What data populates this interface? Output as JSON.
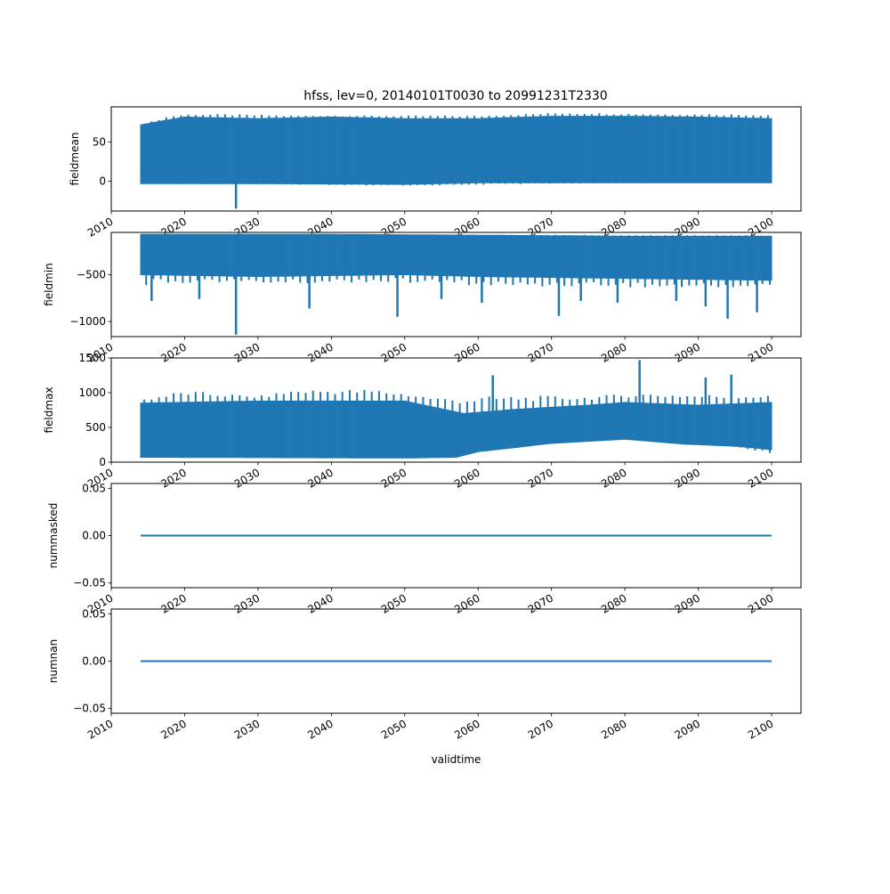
{
  "figure": {
    "title": "hfss, lev=0, 20140101T0030 to 20991231T2330",
    "line_color": "#1f77b4"
  },
  "chart_data": [
    {
      "type": "line",
      "ylabel": "fieldmean",
      "xlabel": "",
      "xlim": [
        2010,
        2104
      ],
      "ylim": [
        -38,
        95
      ],
      "yticks": [
        0,
        50
      ],
      "ytick_labels": [
        "0",
        "50"
      ],
      "xticks": [
        2010,
        2020,
        2030,
        2040,
        2050,
        2060,
        2070,
        2080,
        2090,
        2100
      ],
      "xtick_labels": [
        "2010",
        "2020",
        "2030",
        "2040",
        "2050",
        "2060",
        "2070",
        "2080",
        "2090",
        "2100"
      ],
      "x_start": 2014.0,
      "x_end": 2100.0,
      "band_upper": [
        [
          2014,
          72
        ],
        [
          2020,
          82
        ],
        [
          2030,
          80
        ],
        [
          2040,
          82
        ],
        [
          2050,
          80
        ],
        [
          2060,
          80
        ],
        [
          2070,
          83
        ],
        [
          2080,
          83
        ],
        [
          2090,
          82
        ],
        [
          2100,
          80
        ]
      ],
      "band_lower": [
        [
          2014,
          -3
        ],
        [
          2030,
          -3
        ],
        [
          2050,
          -4
        ],
        [
          2060,
          -2
        ],
        [
          2080,
          -2
        ],
        [
          2100,
          -2
        ]
      ],
      "seasonal_peaks": [
        [
          2014,
          72
        ],
        [
          2018,
          84
        ],
        [
          2021,
          86
        ],
        [
          2025,
          86
        ],
        [
          2035,
          84
        ],
        [
          2052,
          84
        ],
        [
          2060,
          84
        ],
        [
          2072,
          88
        ],
        [
          2085,
          86
        ],
        [
          2098,
          86
        ]
      ],
      "seasonal_troughs": [
        [
          2014,
          -3
        ],
        [
          2050,
          -6
        ],
        [
          2070,
          -3
        ],
        [
          2100,
          -2
        ]
      ],
      "spikes": [
        [
          2027.0,
          -35
        ]
      ],
      "grid": false
    },
    {
      "type": "line",
      "ylabel": "fieldmin",
      "xlabel": "",
      "xlim": [
        2010,
        2104
      ],
      "ylim": [
        -1160,
        -50
      ],
      "yticks": [
        -500,
        -1000
      ],
      "ytick_labels": [
        "−500",
        "−1000"
      ],
      "xticks": [
        2010,
        2020,
        2030,
        2040,
        2050,
        2060,
        2070,
        2080,
        2090,
        2100
      ],
      "xtick_labels": [
        "2010",
        "2020",
        "2030",
        "2040",
        "2050",
        "2060",
        "2070",
        "2080",
        "2090",
        "2100"
      ],
      "x_start": 2014.0,
      "x_end": 2100.0,
      "band_upper": [
        [
          2014,
          -70
        ],
        [
          2040,
          -70
        ],
        [
          2060,
          -80
        ],
        [
          2080,
          -90
        ],
        [
          2100,
          -90
        ]
      ],
      "band_lower": [
        [
          2014,
          -500
        ],
        [
          2030,
          -520
        ],
        [
          2050,
          -500
        ],
        [
          2060,
          -520
        ],
        [
          2080,
          -540
        ],
        [
          2100,
          -560
        ]
      ],
      "seasonal_peaks": [
        [
          2014,
          -70
        ],
        [
          2100,
          -80
        ]
      ],
      "seasonal_troughs": [
        [
          2014,
          -620
        ],
        [
          2018,
          -600
        ],
        [
          2022,
          -580
        ],
        [
          2035,
          -600
        ],
        [
          2045,
          -580
        ],
        [
          2055,
          -600
        ],
        [
          2065,
          -640
        ],
        [
          2075,
          -620
        ],
        [
          2085,
          -650
        ],
        [
          2095,
          -640
        ],
        [
          2100,
          -620
        ]
      ],
      "spikes": [
        [
          2015.5,
          -780
        ],
        [
          2022.0,
          -760
        ],
        [
          2027.0,
          -1140
        ],
        [
          2037.0,
          -860
        ],
        [
          2049.0,
          -950
        ],
        [
          2055.0,
          -760
        ],
        [
          2060.5,
          -800
        ],
        [
          2071.0,
          -940
        ],
        [
          2074.0,
          -780
        ],
        [
          2079.0,
          -800
        ],
        [
          2087.0,
          -780
        ],
        [
          2091.0,
          -840
        ],
        [
          2094.0,
          -970
        ],
        [
          2098.0,
          -900
        ]
      ],
      "grid": false
    },
    {
      "type": "line",
      "ylabel": "fieldmax",
      "xlabel": "",
      "xlim": [
        2010,
        2104
      ],
      "ylim": [
        0,
        1500
      ],
      "yticks": [
        0,
        500,
        1000,
        1500
      ],
      "ytick_labels": [
        "0",
        "500",
        "1000",
        "1500"
      ],
      "xticks": [
        2010,
        2020,
        2030,
        2040,
        2050,
        2060,
        2070,
        2080,
        2090,
        2100
      ],
      "xtick_labels": [
        "2010",
        "2020",
        "2030",
        "2040",
        "2050",
        "2060",
        "2070",
        "2080",
        "2090",
        "2100"
      ],
      "x_start": 2014.0,
      "x_end": 2100.0,
      "band_upper": [
        [
          2014,
          850
        ],
        [
          2030,
          880
        ],
        [
          2050,
          880
        ],
        [
          2058,
          700
        ],
        [
          2065,
          760
        ],
        [
          2075,
          820
        ],
        [
          2080,
          860
        ],
        [
          2090,
          820
        ],
        [
          2100,
          860
        ]
      ],
      "band_lower": [
        [
          2014,
          70
        ],
        [
          2050,
          60
        ],
        [
          2057,
          70
        ],
        [
          2060,
          150
        ],
        [
          2070,
          270
        ],
        [
          2080,
          330
        ],
        [
          2088,
          260
        ],
        [
          2095,
          230
        ],
        [
          2100,
          180
        ]
      ],
      "seasonal_peaks": [
        [
          2014,
          900
        ],
        [
          2020,
          1030
        ],
        [
          2030,
          950
        ],
        [
          2035,
          1050
        ],
        [
          2046,
          1050
        ],
        [
          2055,
          930
        ],
        [
          2065,
          960
        ],
        [
          2075,
          950
        ],
        [
          2082,
          1000
        ],
        [
          2090,
          980
        ],
        [
          2100,
          960
        ]
      ],
      "seasonal_troughs": [
        [
          2014,
          120
        ],
        [
          2030,
          60
        ],
        [
          2050,
          55
        ],
        [
          2057,
          70
        ],
        [
          2060,
          200
        ],
        [
          2070,
          280
        ],
        [
          2080,
          350
        ],
        [
          2090,
          300
        ],
        [
          2100,
          120
        ]
      ],
      "spikes": [
        [
          2062.0,
          1250
        ],
        [
          2082.0,
          1470
        ],
        [
          2091.0,
          1220
        ],
        [
          2094.5,
          1260
        ]
      ],
      "grid": false
    },
    {
      "type": "line",
      "ylabel": "nummasked",
      "xlabel": "",
      "xlim": [
        2010,
        2104
      ],
      "ylim": [
        -0.055,
        0.055
      ],
      "yticks": [
        0.05,
        0.0,
        -0.05
      ],
      "ytick_labels": [
        "0.05",
        "0.00",
        "−0.05"
      ],
      "xticks": [
        2010,
        2020,
        2030,
        2040,
        2050,
        2060,
        2070,
        2080,
        2090,
        2100
      ],
      "xtick_labels": [
        "2010",
        "2020",
        "2030",
        "2040",
        "2050",
        "2060",
        "2070",
        "2080",
        "2090",
        "2100"
      ],
      "x": [
        2014.0,
        2100.0
      ],
      "y": [
        0.0,
        0.0
      ],
      "grid": false
    },
    {
      "type": "line",
      "ylabel": "numnan",
      "xlabel": "validtime",
      "xlim": [
        2010,
        2104
      ],
      "ylim": [
        -0.055,
        0.055
      ],
      "yticks": [
        0.05,
        0.0,
        -0.05
      ],
      "ytick_labels": [
        "0.05",
        "0.00",
        "−0.05"
      ],
      "xticks": [
        2010,
        2020,
        2030,
        2040,
        2050,
        2060,
        2070,
        2080,
        2090,
        2100
      ],
      "xtick_labels": [
        "2010",
        "2020",
        "2030",
        "2040",
        "2050",
        "2060",
        "2070",
        "2080",
        "2090",
        "2100"
      ],
      "x": [
        2014.0,
        2100.0
      ],
      "y": [
        0.0,
        0.0
      ],
      "grid": false
    }
  ]
}
